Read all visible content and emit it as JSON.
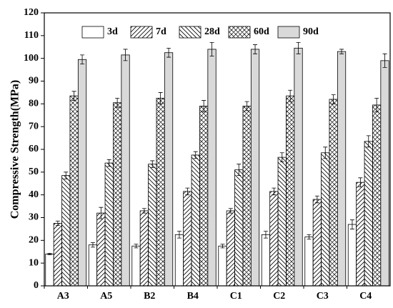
{
  "chart_data": {
    "type": "bar",
    "y_label": "Compressive Strength(MPa)",
    "categories": [
      "A3",
      "A5",
      "B2",
      "B4",
      "C1",
      "C2",
      "C3",
      "C4"
    ],
    "series": [
      {
        "name": "3d",
        "color": "#ffffff",
        "pattern": "none",
        "values": [
          14,
          18,
          17.5,
          22.5,
          17.5,
          22.5,
          21.5,
          27
        ],
        "errors": [
          0.3,
          1,
          0.8,
          1.5,
          0.8,
          1.5,
          1,
          2
        ]
      },
      {
        "name": "7d",
        "color": "#ffffff",
        "pattern": "forward",
        "values": [
          27.5,
          32,
          33,
          41.5,
          33,
          41.5,
          38,
          45.5
        ],
        "errors": [
          1,
          2.5,
          1,
          1.5,
          1,
          1.5,
          1.5,
          2
        ]
      },
      {
        "name": "28d",
        "color": "#ffffff",
        "pattern": "backward",
        "values": [
          48.5,
          54,
          53.5,
          57.5,
          51,
          56.5,
          58.5,
          63.5
        ],
        "errors": [
          1.5,
          1.5,
          1.5,
          1.5,
          2.5,
          2,
          2.5,
          2.5
        ]
      },
      {
        "name": "60d",
        "color": "#ffffff",
        "pattern": "cross",
        "values": [
          83.5,
          80.5,
          82.5,
          79,
          79,
          83.5,
          82,
          79.5
        ],
        "errors": [
          2,
          2,
          2.5,
          2.5,
          2,
          2.5,
          2,
          3
        ]
      },
      {
        "name": "90d",
        "color": "#d9d9d9",
        "pattern": "none",
        "values": [
          99.5,
          101.5,
          102.5,
          104,
          104,
          104.5,
          103,
          99
        ],
        "errors": [
          2,
          2.5,
          2,
          3,
          2,
          2.5,
          1,
          3
        ]
      }
    ],
    "ylim": [
      0,
      120
    ],
    "yticks": [
      0,
      10,
      20,
      30,
      40,
      50,
      60,
      70,
      80,
      90,
      100,
      110,
      120
    ],
    "legend": "top"
  }
}
